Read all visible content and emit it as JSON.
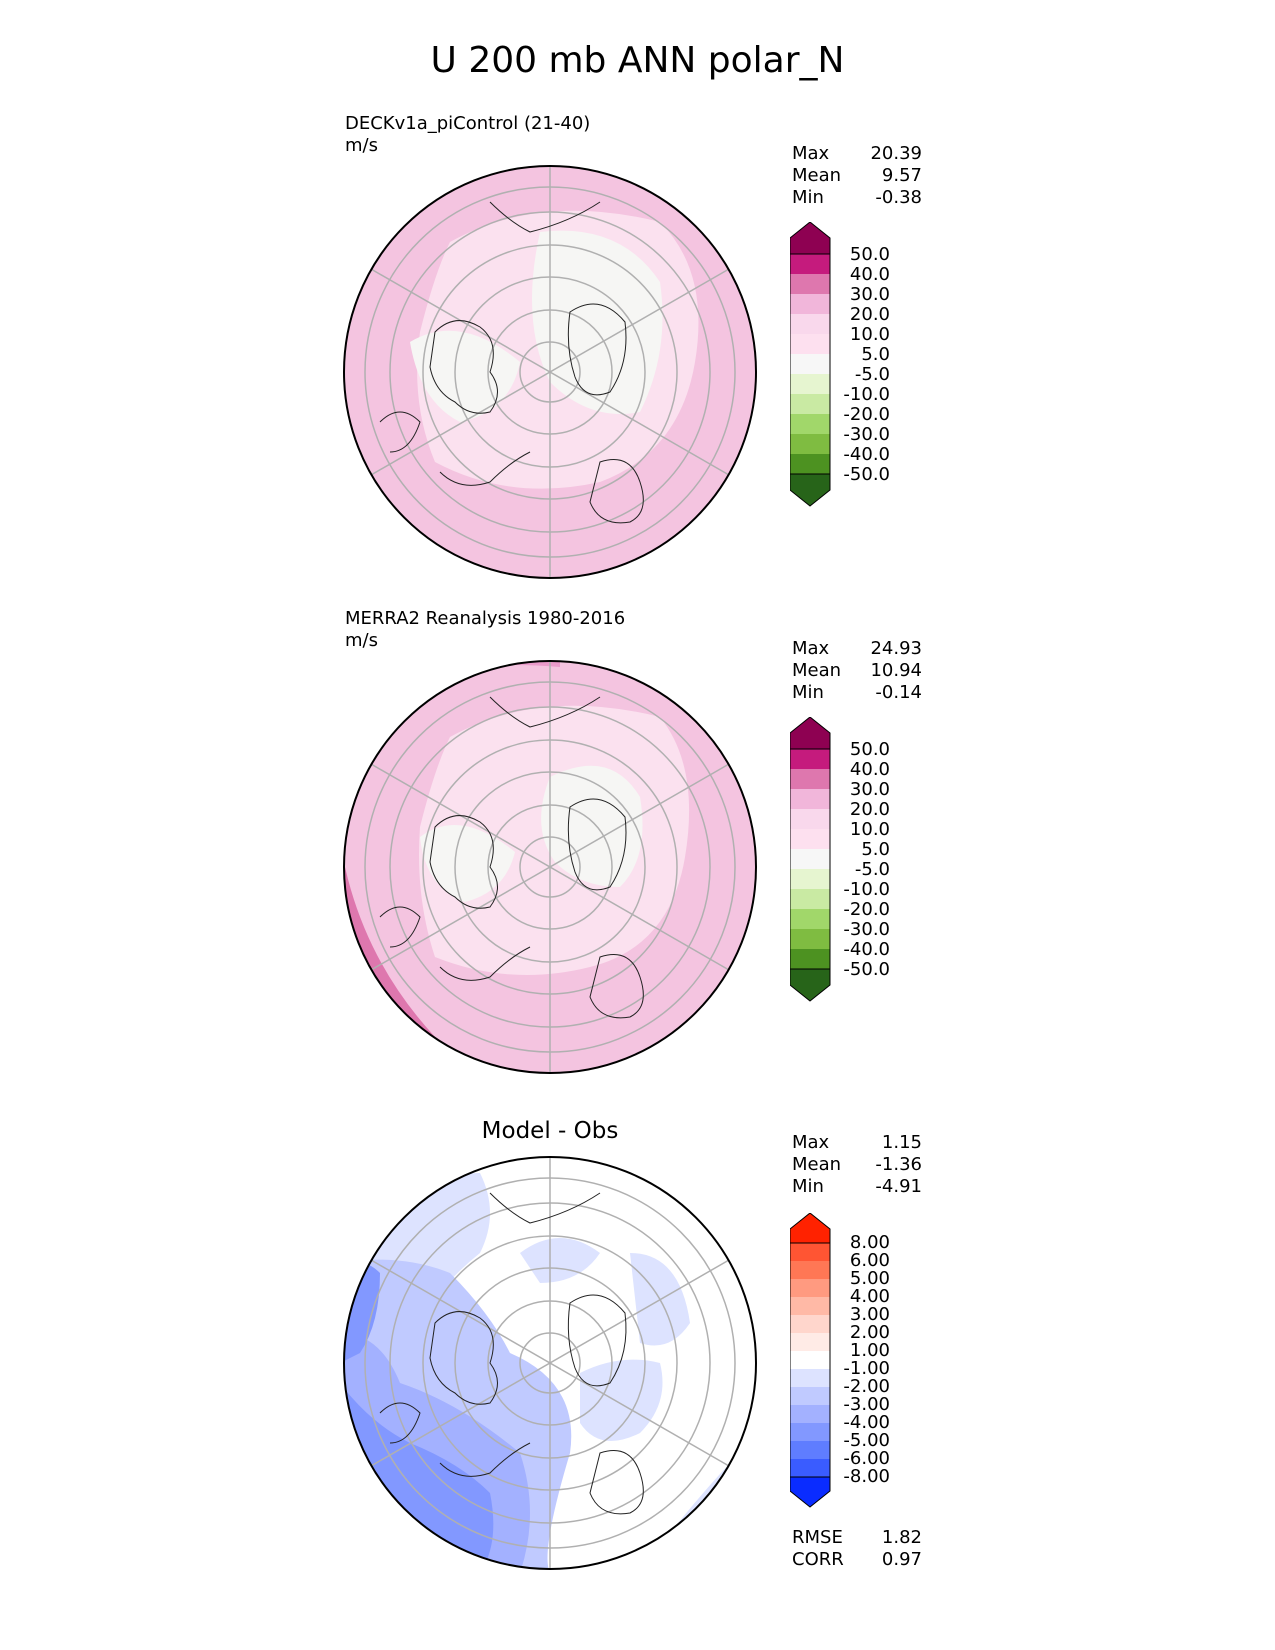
{
  "title": "U 200 mb ANN polar_N",
  "panels": [
    {
      "label": "DECKv1a_piControl (21-40)",
      "units": "m/s",
      "stats": [
        {
          "name": "Max",
          "value": "20.39"
        },
        {
          "name": "Mean",
          "value": "9.57"
        },
        {
          "name": "Min",
          "value": "-0.38"
        }
      ]
    },
    {
      "label": "MERRA2 Reanalysis 1980-2016",
      "units": "m/s",
      "stats": [
        {
          "name": "Max",
          "value": "24.93"
        },
        {
          "name": "Mean",
          "value": "10.94"
        },
        {
          "name": "Min",
          "value": "-0.14"
        }
      ]
    },
    {
      "title": "Model - Obs",
      "stats": [
        {
          "name": "Max",
          "value": "1.15"
        },
        {
          "name": "Mean",
          "value": "-1.36"
        },
        {
          "name": "Min",
          "value": "-4.91"
        }
      ],
      "metrics": [
        {
          "name": "RMSE",
          "value": "1.82"
        },
        {
          "name": "CORR",
          "value": "0.97"
        }
      ]
    }
  ],
  "colorbar_fields": {
    "ticks": [
      "50.0",
      "40.0",
      "30.0",
      "20.0",
      "10.0",
      "5.0",
      "-5.0",
      "-10.0",
      "-20.0",
      "-30.0",
      "-40.0",
      "-50.0"
    ],
    "colors": [
      "#8e0152",
      "#c51b7d",
      "#de77ae",
      "#f1b6da",
      "#f9d8ec",
      "#fde0ef",
      "#f7f7f7",
      "#e6f5d0",
      "#c9eaa3",
      "#a1d76a",
      "#7fbc41",
      "#4d9221",
      "#276419"
    ]
  },
  "colorbar_diff": {
    "ticks": [
      "8.00",
      "6.00",
      "5.00",
      "4.00",
      "3.00",
      "2.00",
      "1.00",
      "-1.00",
      "-2.00",
      "-3.00",
      "-4.00",
      "-5.00",
      "-6.00",
      "-8.00"
    ],
    "colors": [
      "#ff2200",
      "#ff5533",
      "#ff7755",
      "#ff9a80",
      "#ffb9a6",
      "#ffd6cc",
      "#ffebe6",
      "#ffffff",
      "#dde3ff",
      "#c0caff",
      "#a3b1ff",
      "#8298ff",
      "#5f7dff",
      "#3a5cff",
      "#0a2cff"
    ]
  }
}
